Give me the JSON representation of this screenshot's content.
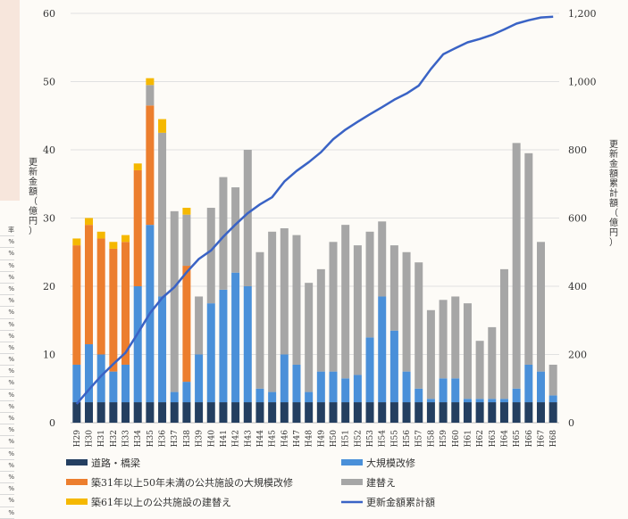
{
  "chart_data": {
    "type": "bar",
    "categories": [
      "H29",
      "H30",
      "H31",
      "H32",
      "H33",
      "H34",
      "H35",
      "H36",
      "H37",
      "H38",
      "H39",
      "H40",
      "H41",
      "H42",
      "H43",
      "H44",
      "H45",
      "H46",
      "H47",
      "H48",
      "H49",
      "H50",
      "H51",
      "H52",
      "H53",
      "H54",
      "H55",
      "H56",
      "H57",
      "H58",
      "H59",
      "H60",
      "H61",
      "H62",
      "H63",
      "H64",
      "H65",
      "H66",
      "H67",
      "H68"
    ],
    "series": [
      {
        "name": "道路・橋梁",
        "color": "#243f60",
        "values": [
          3,
          3,
          3,
          3,
          3,
          3,
          3,
          3,
          3,
          3,
          3,
          3,
          3,
          3,
          3,
          3,
          3,
          3,
          3,
          3,
          3,
          3,
          3,
          3,
          3,
          3,
          3,
          3,
          3,
          3,
          3,
          3,
          3,
          3,
          3,
          3,
          3,
          3,
          3,
          3
        ]
      },
      {
        "name": "大規模改修",
        "color": "#4a90d9",
        "values": [
          5.5,
          8.5,
          7,
          4.5,
          5.5,
          17,
          26,
          15.5,
          1.5,
          3,
          7,
          14.5,
          16.5,
          19,
          17,
          2,
          1.5,
          7,
          5.5,
          1.5,
          4.5,
          4.5,
          3.5,
          4,
          9.5,
          15.5,
          10.5,
          4.5,
          2,
          0.5,
          3.5,
          3.5,
          0.5,
          0.5,
          0.5,
          0.5,
          2,
          5.5,
          4.5,
          1
        ]
      },
      {
        "name": "築31年以上50年未満の公共施設の大規模改修",
        "color": "#ec7e2e",
        "values": [
          17.5,
          17.5,
          17,
          18,
          18,
          17,
          17.5,
          0,
          0,
          17,
          0,
          0,
          0,
          0,
          0,
          0,
          0,
          0,
          0,
          0,
          0,
          0,
          0,
          0,
          0,
          0,
          0,
          0,
          0,
          0,
          0,
          0,
          0,
          0,
          0,
          0,
          0,
          0,
          0,
          0
        ]
      },
      {
        "name": "建替え",
        "color": "#a6a6a6",
        "values": [
          0,
          0,
          0,
          0,
          0,
          0,
          3,
          24,
          26.5,
          7.5,
          8.5,
          14,
          16.5,
          12.5,
          20,
          20,
          23.5,
          18.5,
          19,
          16,
          15,
          19,
          22.5,
          19,
          15.5,
          11,
          12.5,
          17.5,
          18.5,
          13,
          11.5,
          12,
          14,
          8.5,
          10.5,
          19,
          36,
          31,
          19,
          4.5
        ]
      },
      {
        "name": "築61年以上の公共施設の建替え",
        "color": "#f5b800",
        "values": [
          1,
          1,
          1,
          1,
          1,
          1,
          1,
          2,
          0,
          1,
          0,
          0,
          0,
          0,
          0,
          0,
          0,
          0,
          0,
          0,
          0,
          0,
          0,
          0,
          0,
          0,
          0,
          0,
          0,
          0,
          0,
          0,
          0,
          0,
          0,
          0,
          0,
          0,
          0,
          0
        ]
      }
    ],
    "line": {
      "name": "更新金額累計額",
      "color": "#3a63c5",
      "values": [
        55,
        97,
        137,
        172,
        205,
        262,
        321,
        366,
        397,
        441,
        480,
        505,
        545,
        581,
        614,
        640,
        661,
        707,
        738,
        764,
        793,
        831,
        859,
        882,
        904,
        925,
        947,
        965,
        988,
        1037,
        1080,
        1098,
        1115,
        1125,
        1137,
        1153,
        1170,
        1180,
        1188,
        1190
      ]
    },
    "ylim_left": [
      0,
      60
    ],
    "ylim_right": [
      0,
      1200
    ],
    "yticks_left": [
      "0",
      "10",
      "20",
      "30",
      "40",
      "50",
      "60"
    ],
    "yticks_right": [
      "0",
      "200",
      "400",
      "600",
      "800",
      "1,000",
      "1,200"
    ],
    "ylabel_left": "更新金額（億円）",
    "ylabel_right": "更新金額累計額（億円）",
    "grid": true,
    "legend_position": "bottom"
  },
  "legend": [
    {
      "label": "道路・橋梁",
      "color": "#243f60",
      "kind": "box"
    },
    {
      "label": "大規模改修",
      "color": "#4a90d9",
      "kind": "box"
    },
    {
      "label": "築31年以上50年未満の公共施設の大規模改修",
      "color": "#ec7e2e",
      "kind": "box"
    },
    {
      "label": "建替え",
      "color": "#a6a6a6",
      "kind": "box"
    },
    {
      "label": "築61年以上の公共施設の建替え",
      "color": "#f5b800",
      "kind": "box"
    },
    {
      "label": "更新金額累計額",
      "color": "#3a63c5",
      "kind": "line"
    }
  ],
  "edge": {
    "left_table_header": "率",
    "left_table_cells": [
      "%",
      "%",
      "%",
      "%",
      "%",
      "%",
      "%",
      "%",
      "%",
      "%",
      "%",
      "%",
      "%",
      "%",
      "%",
      "%",
      "%",
      "%",
      "%",
      "%",
      "%",
      "%",
      "%",
      "%"
    ]
  }
}
